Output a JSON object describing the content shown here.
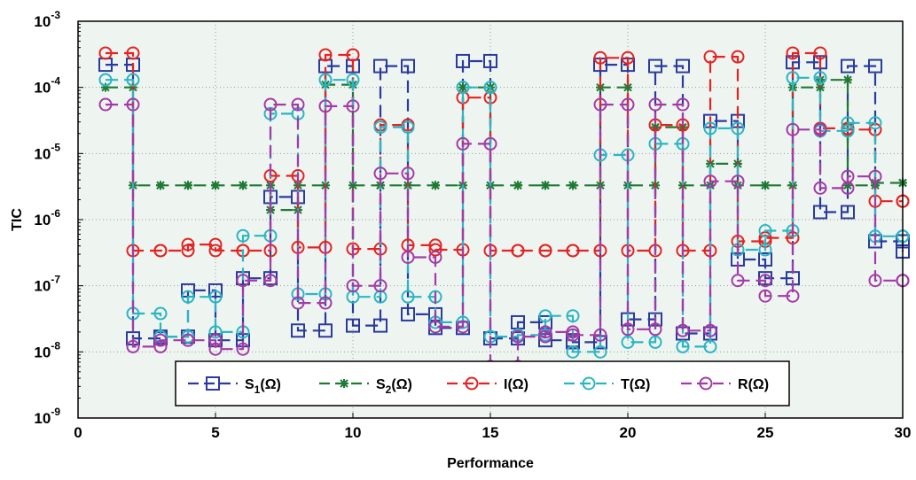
{
  "chart_data": {
    "type": "line",
    "title": "",
    "xlabel": "Performance",
    "ylabel": "TIC",
    "xlim": [
      0,
      30
    ],
    "ylim": [
      1e-09,
      0.001
    ],
    "yscale": "log",
    "x_ticks": [
      "0",
      "5",
      "10",
      "15",
      "20",
      "25",
      "30"
    ],
    "y_tick_bases": [
      "10",
      "10",
      "10",
      "10",
      "10",
      "10",
      "10"
    ],
    "y_tick_exponents": [
      "-9",
      "-8",
      "-7",
      "-6",
      "-5",
      "-4",
      "-3"
    ],
    "grid": true,
    "legend_position": "bottom-center",
    "plot_background": "#eef5f0",
    "series": [
      {
        "name": "S1(Ω)",
        "legend_main": "S",
        "legend_sub": "1",
        "legend_rest": "(Ω)",
        "color": "#2b3a9e",
        "marker": "square",
        "dash": "14,7",
        "values": [
          0.00022,
          1.6e-08,
          1.7e-08,
          8.5e-08,
          1.5e-08,
          1.3e-07,
          2.2e-06,
          2.1e-08,
          0.00021,
          2.5e-08,
          0.00021,
          3.7e-08,
          2.3e-08,
          0.00025,
          1.6e-08,
          2.8e-08,
          1.5e-08,
          1.4e-08,
          0.00022,
          3.1e-08,
          0.00021,
          1.9e-08,
          3.1e-05,
          2.5e-07,
          1.3e-07,
          0.00024,
          1.3e-06,
          0.00021,
          4.7e-07,
          3.3e-07
        ]
      },
      {
        "name": "S2(Ω)",
        "legend_main": "S",
        "legend_sub": "2",
        "legend_rest": "(Ω)",
        "color": "#1e7a35",
        "marker": "star",
        "dash": "14,7",
        "values": [
          0.0001,
          3.3e-06,
          3.3e-06,
          3.3e-06,
          3.3e-06,
          3.3e-06,
          1.4e-06,
          3.3e-06,
          0.00011,
          3.3e-06,
          3.3e-06,
          3.3e-06,
          3.3e-06,
          0.0001,
          3.3e-06,
          3.3e-06,
          3.3e-06,
          3.3e-06,
          0.0001,
          3.3e-06,
          2.5e-05,
          3.3e-06,
          7e-06,
          3.3e-06,
          3.3e-06,
          0.0001,
          0.00013,
          3.3e-06,
          3.6e-06,
          3.6e-06
        ]
      },
      {
        "name": "I(Ω)",
        "legend_main": "I",
        "legend_sub": "",
        "legend_rest": "(Ω)",
        "color": "#e52222",
        "marker": "circle",
        "dash": "14,7",
        "values": [
          0.00033,
          3.4e-07,
          3.4e-07,
          4.2e-07,
          3.4e-07,
          3.4e-07,
          4.6e-06,
          3.8e-07,
          0.00031,
          3.6e-07,
          2.7e-05,
          4.1e-07,
          3.5e-07,
          7e-05,
          3.4e-07,
          3.4e-07,
          3.4e-07,
          3.4e-07,
          0.00028,
          3.4e-07,
          2.7e-05,
          3.4e-07,
          0.00029,
          4.7e-07,
          5.3e-07,
          0.00033,
          2.4e-05,
          2.3e-05,
          1.9e-06,
          1.9e-06
        ]
      },
      {
        "name": "T(Ω)",
        "legend_main": "T",
        "legend_sub": "",
        "legend_rest": "(Ω)",
        "color": "#2ab5c4",
        "marker": "circle",
        "dash": "14,7",
        "values": [
          0.00013,
          3.8e-08,
          1.7e-08,
          6.8e-08,
          2e-08,
          5.7e-07,
          4e-05,
          7.5e-08,
          0.00013,
          6.8e-08,
          2.5e-05,
          6.8e-08,
          2.8e-08,
          0.0001,
          1.7e-08,
          1.8e-08,
          3.5e-08,
          1e-08,
          9.5e-06,
          1.4e-08,
          1.4e-05,
          1.2e-08,
          2.4e-05,
          3.5e-07,
          6.8e-07,
          0.00014,
          2.2e-05,
          2.9e-05,
          5.6e-07,
          5.6e-07
        ]
      },
      {
        "name": "R(Ω)",
        "legend_main": "R",
        "legend_sub": "",
        "legend_rest": "(Ω)",
        "color": "#a43aa8",
        "marker": "circle",
        "dash": "14,7",
        "values": [
          5.5e-05,
          1.2e-08,
          1.5e-08,
          1.5e-08,
          1.1e-08,
          1.2e-07,
          5.5e-05,
          5.5e-08,
          5.2e-05,
          1e-07,
          5e-06,
          2.7e-07,
          2.4e-08,
          1.4e-05,
          6e-09,
          1.7e-08,
          2e-08,
          1.8e-08,
          5.5e-05,
          2.2e-08,
          5.5e-05,
          2.1e-08,
          3.8e-06,
          1.2e-07,
          7e-08,
          2.3e-05,
          3e-06,
          4.5e-06,
          1.2e-07,
          1.2e-07
        ]
      }
    ]
  }
}
